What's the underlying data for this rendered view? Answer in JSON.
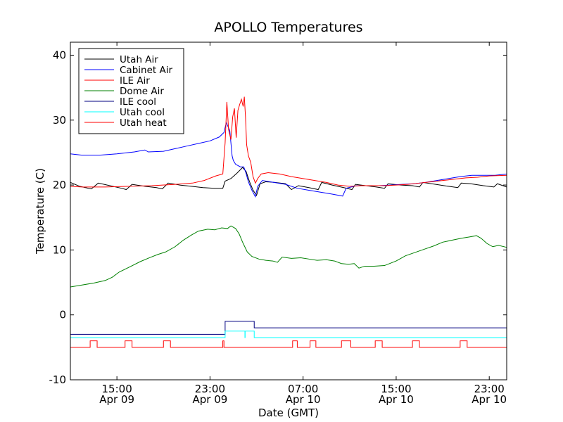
{
  "chart_data": {
    "type": "line",
    "title": "APOLLO Temperatures",
    "xlabel": "Date (GMT)",
    "ylabel": "Temperature (C)",
    "ylim": [
      -10,
      42
    ],
    "xlim": [
      11,
      48.5
    ],
    "grid": false,
    "legend_position": "top-left",
    "y_ticks": [
      {
        "value": -10,
        "label": "-10"
      },
      {
        "value": 0,
        "label": "0"
      },
      {
        "value": 10,
        "label": "10"
      },
      {
        "value": 20,
        "label": "20"
      },
      {
        "value": 30,
        "label": "30"
      },
      {
        "value": 40,
        "label": "40"
      }
    ],
    "x_ticks": [
      {
        "value": 15,
        "time": "15:00",
        "date": "Apr 09"
      },
      {
        "value": 23,
        "time": "23:00",
        "date": "Apr 09"
      },
      {
        "value": 31,
        "time": "07:00",
        "date": "Apr 10"
      },
      {
        "value": 39,
        "time": "15:00",
        "date": "Apr 10"
      },
      {
        "value": 47,
        "time": "23:00",
        "date": "Apr 10"
      }
    ],
    "series": [
      {
        "name": "Utah Air",
        "color": "#000000",
        "points": [
          [
            11,
            20.4
          ],
          [
            11.8,
            19.8
          ],
          [
            12.8,
            19.4
          ],
          [
            13.4,
            20.3
          ],
          [
            14.4,
            19.9
          ],
          [
            15.4,
            19.5
          ],
          [
            15.8,
            19.3
          ],
          [
            16.3,
            20.1
          ],
          [
            17.4,
            19.8
          ],
          [
            18.4,
            19.6
          ],
          [
            18.9,
            19.4
          ],
          [
            19.4,
            20.3
          ],
          [
            20.4,
            20
          ],
          [
            21.4,
            19.8
          ],
          [
            22.4,
            19.6
          ],
          [
            23.4,
            19.5
          ],
          [
            24.1,
            19.5
          ],
          [
            24.3,
            20.6
          ],
          [
            24.8,
            21
          ],
          [
            25.3,
            21.8
          ],
          [
            25.8,
            22.7
          ],
          [
            26.1,
            22.1
          ],
          [
            26.4,
            20.5
          ],
          [
            26.7,
            19.2
          ],
          [
            27,
            18.4
          ],
          [
            27.3,
            20.2
          ],
          [
            27.8,
            20.5
          ],
          [
            28.6,
            20.4
          ],
          [
            29.5,
            20.2
          ],
          [
            30,
            19.3
          ],
          [
            30.6,
            19.9
          ],
          [
            31.5,
            19.6
          ],
          [
            32.3,
            19.3
          ],
          [
            32.6,
            20.4
          ],
          [
            33.5,
            20
          ],
          [
            34.5,
            19.6
          ],
          [
            35.2,
            19.3
          ],
          [
            35.5,
            20.1
          ],
          [
            36.4,
            19.9
          ],
          [
            37.3,
            19.7
          ],
          [
            38,
            19.5
          ],
          [
            38.3,
            20.2
          ],
          [
            39.4,
            20
          ],
          [
            40.4,
            19.9
          ],
          [
            41,
            19.7
          ],
          [
            41.3,
            20.4
          ],
          [
            42.4,
            20.1
          ],
          [
            43.5,
            19.8
          ],
          [
            44.3,
            19.6
          ],
          [
            44.6,
            20.3
          ],
          [
            45.4,
            20.2
          ],
          [
            46.5,
            19.9
          ],
          [
            47.4,
            19.7
          ],
          [
            47.7,
            20.2
          ],
          [
            48.5,
            19.7
          ]
        ]
      },
      {
        "name": "Cabinet Air",
        "color": "#0000ff",
        "points": [
          [
            11,
            24.8
          ],
          [
            12,
            24.6
          ],
          [
            13.5,
            24.6
          ],
          [
            15,
            24.8
          ],
          [
            16.5,
            25.1
          ],
          [
            17.4,
            25.4
          ],
          [
            17.7,
            25.1
          ],
          [
            19,
            25.2
          ],
          [
            20,
            25.6
          ],
          [
            21,
            26
          ],
          [
            22,
            26.4
          ],
          [
            23,
            26.8
          ],
          [
            23.8,
            27.4
          ],
          [
            24.2,
            28.1
          ],
          [
            24.4,
            29.6
          ],
          [
            24.5,
            29.2
          ],
          [
            24.7,
            28.4
          ],
          [
            24.9,
            24.5
          ],
          [
            25,
            23.8
          ],
          [
            25.2,
            23.2
          ],
          [
            25.6,
            22.8
          ],
          [
            25.9,
            22.8
          ],
          [
            26.1,
            21.8
          ],
          [
            26.3,
            20.5
          ],
          [
            26.6,
            19.2
          ],
          [
            26.9,
            18.2
          ],
          [
            27.1,
            19.8
          ],
          [
            27.5,
            20.7
          ],
          [
            28.5,
            20.4
          ],
          [
            29.5,
            20.1
          ],
          [
            30.5,
            19.5
          ],
          [
            31.5,
            19.2
          ],
          [
            32.5,
            18.9
          ],
          [
            33.5,
            18.6
          ],
          [
            34.4,
            18.3
          ],
          [
            34.7,
            19.5
          ],
          [
            35.6,
            19.9
          ],
          [
            36.5,
            19.9
          ],
          [
            37.5,
            19.9
          ],
          [
            38.5,
            20
          ],
          [
            39.5,
            20.1
          ],
          [
            40.5,
            20.2
          ],
          [
            41.5,
            20.4
          ],
          [
            42.5,
            20.7
          ],
          [
            43.5,
            21
          ],
          [
            44.5,
            21.3
          ],
          [
            45.5,
            21.5
          ],
          [
            46.5,
            21.5
          ],
          [
            47.5,
            21.5
          ],
          [
            48.5,
            21.7
          ]
        ]
      },
      {
        "name": "ILE Air",
        "color": "#ff0000",
        "points": [
          [
            11,
            19.8
          ],
          [
            12,
            19.7
          ],
          [
            14,
            19.7
          ],
          [
            16,
            19.8
          ],
          [
            18,
            19.9
          ],
          [
            20,
            20.1
          ],
          [
            21.5,
            20.3
          ],
          [
            22.5,
            20.7
          ],
          [
            23.5,
            21.4
          ],
          [
            24.1,
            21.7
          ],
          [
            24.3,
            26.5
          ],
          [
            24.45,
            32.8
          ],
          [
            24.6,
            28.5
          ],
          [
            24.8,
            27
          ],
          [
            24.95,
            30.5
          ],
          [
            25.1,
            31.8
          ],
          [
            25.25,
            27.3
          ],
          [
            25.4,
            31.5
          ],
          [
            25.55,
            32.4
          ],
          [
            25.7,
            33.2
          ],
          [
            25.85,
            32.1
          ],
          [
            25.95,
            33.6
          ],
          [
            26.05,
            30.5
          ],
          [
            26.15,
            26.2
          ],
          [
            26.3,
            24.5
          ],
          [
            26.5,
            23.5
          ],
          [
            26.7,
            21.3
          ],
          [
            26.9,
            20.3
          ],
          [
            27.1,
            21
          ],
          [
            27.4,
            21.7
          ],
          [
            28,
            21.9
          ],
          [
            29,
            21.7
          ],
          [
            30,
            21.3
          ],
          [
            31,
            21
          ],
          [
            32,
            20.7
          ],
          [
            33,
            20.4
          ],
          [
            34,
            20
          ],
          [
            35,
            19.8
          ],
          [
            36,
            19.9
          ],
          [
            37,
            19.9
          ],
          [
            38,
            19.9
          ],
          [
            39,
            20
          ],
          [
            40,
            20.1
          ],
          [
            41,
            20.3
          ],
          [
            42,
            20.5
          ],
          [
            43,
            20.7
          ],
          [
            44,
            20.9
          ],
          [
            45,
            21.1
          ],
          [
            46,
            21.2
          ],
          [
            47,
            21.4
          ],
          [
            48.5,
            21.5
          ]
        ]
      },
      {
        "name": "Dome Air",
        "color": "#008000",
        "points": [
          [
            11,
            4.3
          ],
          [
            12,
            4.6
          ],
          [
            13,
            4.9
          ],
          [
            14,
            5.3
          ],
          [
            14.6,
            5.8
          ],
          [
            15.2,
            6.6
          ],
          [
            16,
            7.3
          ],
          [
            17,
            8.2
          ],
          [
            17.8,
            8.8
          ],
          [
            18.5,
            9.3
          ],
          [
            19.2,
            9.7
          ],
          [
            20,
            10.5
          ],
          [
            20.7,
            11.5
          ],
          [
            21.4,
            12.3
          ],
          [
            22,
            12.9
          ],
          [
            22.8,
            13.2
          ],
          [
            23.4,
            13.1
          ],
          [
            24,
            13.4
          ],
          [
            24.5,
            13.3
          ],
          [
            24.8,
            13.7
          ],
          [
            25.2,
            13.3
          ],
          [
            25.5,
            12.5
          ],
          [
            25.8,
            11.2
          ],
          [
            26.2,
            9.7
          ],
          [
            26.6,
            9
          ],
          [
            27.2,
            8.6
          ],
          [
            27.8,
            8.4
          ],
          [
            28.4,
            8.3
          ],
          [
            28.8,
            8.1
          ],
          [
            29.2,
            8.9
          ],
          [
            30,
            8.7
          ],
          [
            30.8,
            8.8
          ],
          [
            31.5,
            8.6
          ],
          [
            32.2,
            8.4
          ],
          [
            33,
            8.5
          ],
          [
            33.7,
            8.3
          ],
          [
            34.3,
            7.9
          ],
          [
            34.9,
            7.8
          ],
          [
            35.4,
            7.9
          ],
          [
            35.8,
            7.2
          ],
          [
            36.3,
            7.5
          ],
          [
            37.1,
            7.5
          ],
          [
            38,
            7.6
          ],
          [
            39,
            8.3
          ],
          [
            39.8,
            9.1
          ],
          [
            40.6,
            9.6
          ],
          [
            41.4,
            10.1
          ],
          [
            42.2,
            10.6
          ],
          [
            43,
            11.2
          ],
          [
            43.8,
            11.5
          ],
          [
            44.6,
            11.8
          ],
          [
            45.3,
            12
          ],
          [
            45.9,
            12.2
          ],
          [
            46.3,
            11.8
          ],
          [
            46.8,
            11
          ],
          [
            47.3,
            10.5
          ],
          [
            47.8,
            10.7
          ],
          [
            48.5,
            10.4
          ]
        ]
      },
      {
        "name": "ILE cool",
        "color": "#000080",
        "points": [
          [
            11,
            -3
          ],
          [
            24.3,
            -3
          ],
          [
            24.3,
            -1
          ],
          [
            26.8,
            -1
          ],
          [
            26.8,
            -2
          ],
          [
            48.5,
            -2
          ]
        ]
      },
      {
        "name": "Utah cool",
        "color": "#00ffff",
        "points": [
          [
            11,
            -3.5
          ],
          [
            24.3,
            -3.5
          ],
          [
            24.3,
            -2.5
          ],
          [
            26,
            -2.5
          ],
          [
            26,
            -3.5
          ],
          [
            26.02,
            -3.5
          ],
          [
            26.02,
            -2.5
          ],
          [
            26.8,
            -2.5
          ],
          [
            26.8,
            -3.5
          ],
          [
            48.5,
            -3.5
          ]
        ]
      },
      {
        "name": "Utah heat",
        "color": "#ff0000",
        "points": [
          [
            11,
            -5
          ],
          [
            12.7,
            -5
          ],
          [
            12.7,
            -4
          ],
          [
            13.3,
            -4
          ],
          [
            13.3,
            -5
          ],
          [
            15.7,
            -5
          ],
          [
            15.7,
            -4
          ],
          [
            16.3,
            -4
          ],
          [
            16.3,
            -5
          ],
          [
            19,
            -5
          ],
          [
            19,
            -4
          ],
          [
            19.6,
            -4
          ],
          [
            19.6,
            -5
          ],
          [
            24.1,
            -5
          ],
          [
            24.1,
            -4
          ],
          [
            24.2,
            -4
          ],
          [
            24.2,
            -5
          ],
          [
            30.1,
            -5
          ],
          [
            30.1,
            -4
          ],
          [
            30.5,
            -4
          ],
          [
            30.5,
            -5
          ],
          [
            31.6,
            -5
          ],
          [
            31.6,
            -4
          ],
          [
            32.1,
            -4
          ],
          [
            32.1,
            -5
          ],
          [
            34.3,
            -5
          ],
          [
            34.3,
            -4
          ],
          [
            35.1,
            -4
          ],
          [
            35.1,
            -5
          ],
          [
            37.2,
            -5
          ],
          [
            37.2,
            -4
          ],
          [
            37.8,
            -4
          ],
          [
            37.8,
            -5
          ],
          [
            40.4,
            -5
          ],
          [
            40.4,
            -4
          ],
          [
            41,
            -4
          ],
          [
            41,
            -5
          ],
          [
            44.5,
            -5
          ],
          [
            44.5,
            -4
          ],
          [
            45.1,
            -4
          ],
          [
            45.1,
            -5
          ],
          [
            48.5,
            -5
          ]
        ]
      }
    ]
  }
}
